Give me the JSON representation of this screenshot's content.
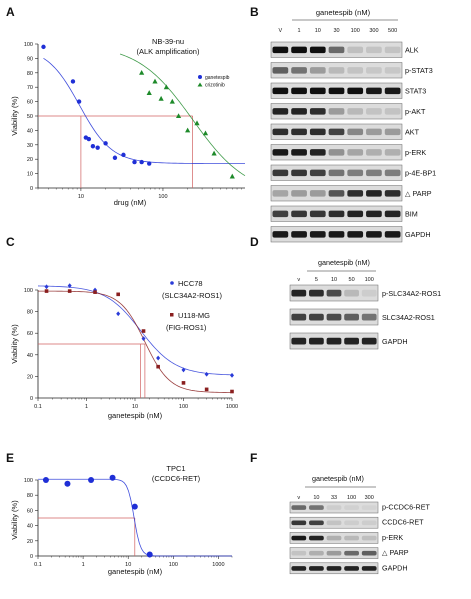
{
  "panels": [
    "A",
    "B",
    "C",
    "D",
    "E",
    "F"
  ],
  "chart_data": [
    {
      "panel": "A",
      "type": "scatter",
      "title": "NB-39-nu",
      "subtitle": "(ALK amplification)",
      "xlabel": "drug (nM)",
      "ylabel": "Viability (%)",
      "xscale": "log",
      "xlim": [
        3,
        1000
      ],
      "ylim": [
        0,
        100
      ],
      "xticks": [
        "10",
        "100"
      ],
      "yticks": [
        "0",
        "10",
        "20",
        "30",
        "40",
        "50",
        "60",
        "70",
        "80",
        "90",
        "100"
      ],
      "legend": "right",
      "series": [
        {
          "name": "ganetespib",
          "color": "#1f2fd6",
          "marker": "circle",
          "x": [
            3.5,
            8,
            9.5,
            11.5,
            12.5,
            14,
            16,
            20,
            26,
            33,
            45,
            55,
            68
          ],
          "y": [
            98,
            74,
            60,
            35,
            34,
            29,
            28,
            31,
            21,
            23,
            18,
            18,
            17
          ]
        },
        {
          "name": "crizotinib",
          "color": "#1e8a2a",
          "marker": "triangle",
          "x": [
            55,
            68,
            80,
            95,
            110,
            130,
            155,
            200,
            260,
            330,
            420,
            700
          ],
          "y": [
            80,
            66,
            74,
            62,
            70,
            60,
            50,
            40,
            45,
            38,
            24,
            8
          ]
        }
      ],
      "refline_y": 50,
      "ic50_x": [
        10,
        230
      ],
      "refcolor": "#d06060"
    },
    {
      "panel": "C",
      "type": "scatter",
      "xlabel": "ganetespib (nM)",
      "ylabel": "Viability (%)",
      "xscale": "log",
      "xlim": [
        0.1,
        1000
      ],
      "ylim": [
        0,
        100
      ],
      "xticks": [
        "0.1",
        "1",
        "10",
        "100",
        "1000"
      ],
      "yticks": [
        "0",
        "20",
        "40",
        "60",
        "80",
        "100"
      ],
      "legend": "right",
      "series": [
        {
          "name": "HCC78",
          "sublabel": "(SLC34A2-ROS1)",
          "color": "#2a3bd8",
          "marker": "diamond",
          "x": [
            0.15,
            0.45,
            1.5,
            4.5,
            15,
            30,
            100,
            300,
            1000
          ],
          "y": [
            103,
            104,
            100,
            78,
            55,
            37,
            26,
            22,
            21
          ]
        },
        {
          "name": "U118-MG",
          "sublabel": "(FIG-ROS1)",
          "color": "#8a1f1f",
          "marker": "square",
          "x": [
            0.15,
            0.45,
            1.5,
            4.5,
            15,
            30,
            100,
            300,
            1000
          ],
          "y": [
            99,
            99,
            98,
            96,
            62,
            29,
            14,
            8,
            6
          ]
        }
      ],
      "refline_y": 50,
      "ic50_x": [
        13,
        16
      ],
      "refcolor": "#d06060"
    },
    {
      "panel": "E",
      "type": "scatter",
      "title": "TPC1",
      "subtitle": "(CCDC6-RET)",
      "xlabel": "ganetespib (nM)",
      "ylabel": "Viability (%)",
      "xscale": "log",
      "xlim": [
        0.1,
        2000
      ],
      "ylim": [
        0,
        100
      ],
      "xticks": [
        "0.1",
        "1",
        "10",
        "100",
        "1000"
      ],
      "yticks": [
        "0",
        "20",
        "40",
        "60",
        "80",
        "100"
      ],
      "series": [
        {
          "color": "#1f2fd6",
          "marker": "circle",
          "x": [
            0.15,
            0.45,
            1.5,
            4.5,
            14,
            30
          ],
          "y": [
            100,
            95,
            100,
            103,
            65,
            2
          ]
        }
      ],
      "refline_y": 50,
      "ic50_x": [
        14
      ],
      "refcolor": "#d06060"
    }
  ],
  "blots": {
    "B": {
      "treatment": "ganetespib (nM)",
      "lanes": [
        "V",
        "1",
        "10",
        "30",
        "100",
        "300",
        "500"
      ],
      "rows": [
        "ALK",
        "p-STAT3",
        "STAT3",
        "p-AKT",
        "AKT",
        "p-ERK",
        "p-4E-BP1",
        "△ PARP",
        "BIM",
        "GAPDH"
      ]
    },
    "D": {
      "treatment": "ganetespib (nM)",
      "lanes": [
        "v",
        "5",
        "10",
        "50",
        "100"
      ],
      "rows": [
        "p-SLC34A2-ROS1",
        "SLC34A2-ROS1",
        "GAPDH"
      ]
    },
    "F": {
      "treatment": "ganetespib (nM)",
      "lanes": [
        "v",
        "10",
        "33",
        "100",
        "300"
      ],
      "rows": [
        "p-CCDC6-RET",
        "CCDC6-RET",
        "p-ERK",
        "△ PARP",
        "GAPDH"
      ]
    }
  }
}
